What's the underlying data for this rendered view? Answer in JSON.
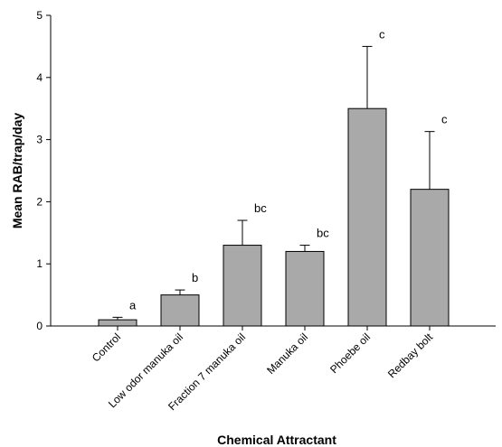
{
  "chart_data": {
    "type": "bar",
    "title": "",
    "xlabel": "Chemical Attractant",
    "ylabel": "Mean RAB/trap/day",
    "ylim": [
      0,
      5
    ],
    "yticks": [
      "0",
      "1",
      "2",
      "3",
      "4",
      "5"
    ],
    "categories": [
      "Control",
      "Low odor manuka oil",
      "Fraction 7 manuka oil",
      "Manuka oil",
      "Phoebe oil",
      "Redbay bolt"
    ],
    "values": [
      0.1,
      0.5,
      1.3,
      1.2,
      3.5,
      2.2
    ],
    "errors": [
      0.04,
      0.08,
      0.4,
      0.1,
      1.0,
      0.93
    ],
    "letters": [
      "a",
      "b",
      "bc",
      "bc",
      "c",
      "c"
    ],
    "bar_color": "#a9a9a9",
    "grid": false
  }
}
